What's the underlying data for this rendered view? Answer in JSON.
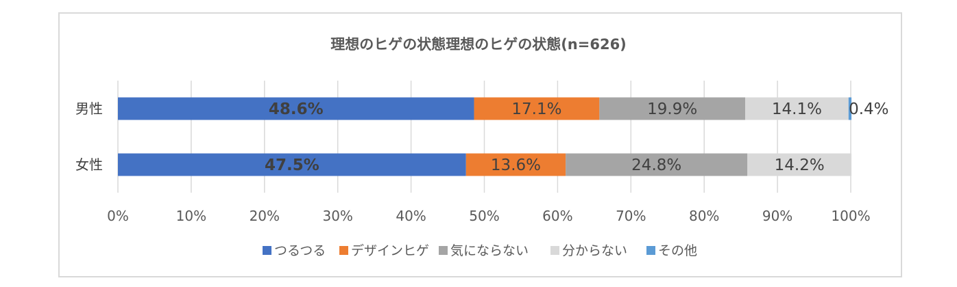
{
  "chart_data": {
    "type": "bar",
    "orientation": "horizontal",
    "stacked": "percent",
    "title": "理想のヒゲの状態理想のヒゲの状態(n=626)",
    "categories": [
      "男性",
      "女性"
    ],
    "series": [
      {
        "name": "つるつる",
        "color": "#4472c4",
        "values": [
          48.6,
          47.5
        ],
        "labels": [
          "48.6%",
          "47.5%"
        ]
      },
      {
        "name": "デザインヒゲ",
        "color": "#ed7d31",
        "values": [
          17.1,
          13.6
        ],
        "labels": [
          "17.1%",
          "13.6%"
        ]
      },
      {
        "name": "気にならない",
        "color": "#a5a5a5",
        "values": [
          19.9,
          24.8
        ],
        "labels": [
          "19.9%",
          "24.8%"
        ]
      },
      {
        "name": "分からない",
        "color": "#d9d9d9",
        "values": [
          14.1,
          14.2
        ],
        "labels": [
          "14.1%",
          "14.2%"
        ]
      },
      {
        "name": "その他",
        "color": "#5b9bd5",
        "values": [
          0.4,
          0.0
        ],
        "labels": [
          "0.4%",
          ""
        ]
      }
    ],
    "xlim": [
      0,
      100
    ],
    "xticks": [
      "0%",
      "10%",
      "20%",
      "30%",
      "40%",
      "50%",
      "60%",
      "70%",
      "80%",
      "90%",
      "100%"
    ],
    "grid": true,
    "legend_position": "bottom"
  }
}
